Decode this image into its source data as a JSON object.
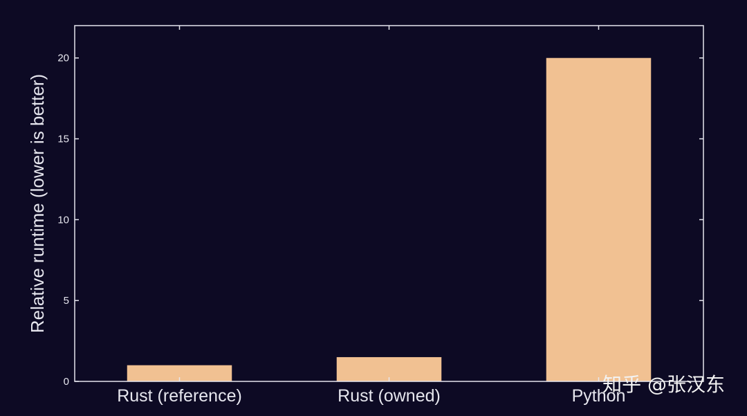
{
  "chart_data": {
    "type": "bar",
    "categories": [
      "Rust (reference)",
      "Rust (owned)",
      "Python"
    ],
    "values": [
      1.0,
      1.5,
      20.0
    ],
    "title": "",
    "xlabel": "",
    "ylabel": "Relative runtime (lower is better)",
    "ylim": [
      0,
      22
    ],
    "yticks": [
      0,
      5,
      10,
      15,
      20
    ],
    "grid": false,
    "legend": "none",
    "bar_color": "#f1c192",
    "axis_color": "#e6e6ee",
    "background": "#0d0a24"
  },
  "watermark": {
    "text": "知乎 @张汉东"
  }
}
